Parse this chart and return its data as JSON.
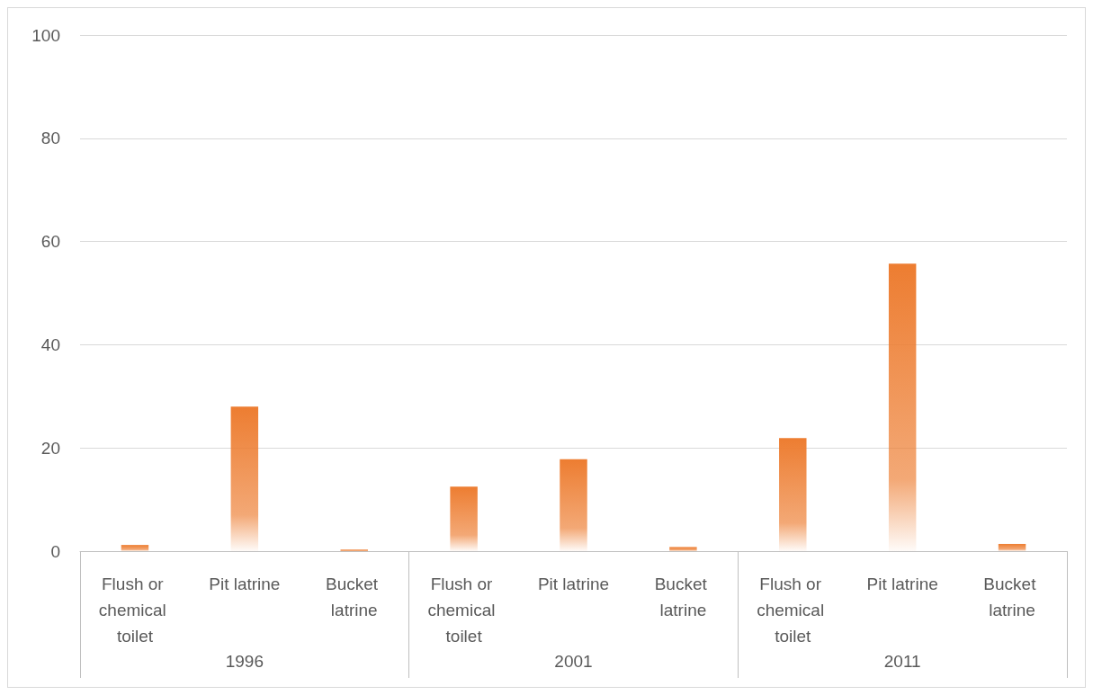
{
  "chart_data": {
    "type": "bar",
    "categories": [
      "Flush or chemical toilet",
      "Pit latrine",
      "Bucket latrine",
      "Flush or chemical toilet",
      "Pit latrine",
      "Bucket latrine",
      "Flush or chemical toilet",
      "Pit latrine",
      "Bucket latrine"
    ],
    "values": [
      1.2,
      28.0,
      0.3,
      12.5,
      17.8,
      0.8,
      21.9,
      55.7,
      1.4
    ],
    "color": "#ed7d31",
    "annotations": [
      "1996",
      "2001",
      "2011"
    ],
    "ylim": [
      0,
      100
    ],
    "yticks": [
      0,
      20,
      40,
      60,
      80,
      100
    ],
    "grid": "y"
  }
}
